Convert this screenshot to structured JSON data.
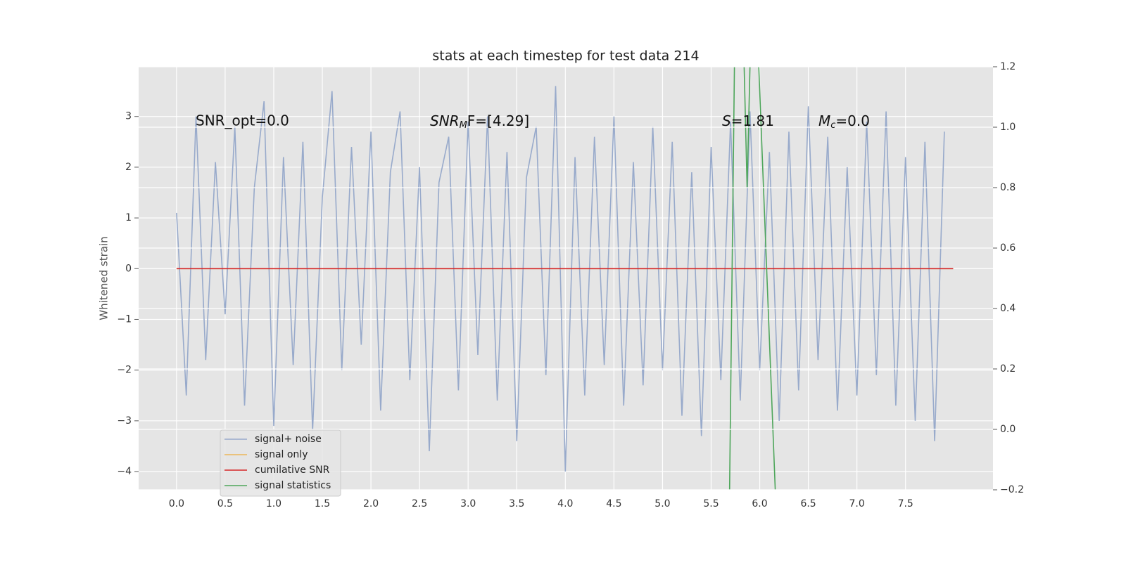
{
  "chart_data": {
    "type": "line",
    "title": "stats at each timestep for test data 214",
    "ylabel": "Whitened strain",
    "xlim": [
      -0.39,
      8.4
    ],
    "ylim": [
      -4.36,
      3.98
    ],
    "y2lim": [
      -0.2,
      1.2
    ],
    "xticks": [
      {
        "value": 0,
        "label": "0.0"
      },
      0.5,
      {
        "value": 1,
        "label": "1.0"
      },
      1.5,
      {
        "value": 2,
        "label": "2.0"
      },
      2.5,
      {
        "value": 3,
        "label": "3.0"
      },
      3.5,
      {
        "value": 4,
        "label": "4.0"
      },
      4.5,
      {
        "value": 5,
        "label": "5.0"
      },
      5.5,
      {
        "value": 6,
        "label": "6.0"
      },
      6.5,
      {
        "value": 7,
        "label": "7.0"
      },
      7.5
    ],
    "yticks": [
      {
        "value": -4,
        "label": "−4"
      },
      {
        "value": -3,
        "label": "−3"
      },
      {
        "value": -2,
        "label": "−2"
      },
      {
        "value": -1,
        "label": "−1"
      },
      0,
      1,
      2,
      3
    ],
    "y2ticks": [
      {
        "value": -0.2,
        "label": "−0.2"
      },
      {
        "value": 0,
        "label": "0.0"
      },
      0.2,
      0.4,
      0.6,
      0.8,
      {
        "value": 1,
        "label": "1.0"
      },
      1.2
    ],
    "grid": true,
    "legend": "lower left",
    "annotations": [
      "SNR_opt=0.0",
      {
        "base": "SNR",
        "sub": "M",
        "tail": "F=[4.29]"
      },
      {
        "base": "S",
        "tail": "=1.81"
      },
      {
        "base": "M",
        "sub": "c",
        "tail": "=0.0"
      }
    ],
    "series": [
      {
        "name": "signal+ noise",
        "color": "#98aacb",
        "x": [
          0,
          0.1,
          0.2,
          0.3,
          0.4,
          0.5,
          0.6,
          0.7,
          0.8,
          0.9,
          1,
          1.1,
          1.2,
          1.3,
          1.4,
          1.5,
          1.6,
          1.7,
          1.8,
          1.9,
          2,
          2.1,
          2.2,
          2.3,
          2.4,
          2.5,
          2.6,
          2.7,
          2.8,
          2.9,
          3,
          3.1,
          3.2,
          3.3,
          3.4,
          3.5,
          3.6,
          3.7,
          3.8,
          3.9,
          4,
          4.1,
          4.2,
          4.3,
          4.4,
          4.5,
          4.6,
          4.7,
          4.8,
          4.9,
          5,
          5.1,
          5.2,
          5.3,
          5.4,
          5.5,
          5.6,
          5.7,
          5.8,
          5.9,
          6,
          6.1,
          6.2,
          6.3,
          6.4,
          6.5,
          6.6,
          6.7,
          6.8,
          6.9,
          7,
          7.1,
          7.2,
          7.3,
          7.4,
          7.5,
          7.6,
          7.7,
          7.8,
          7.9
        ],
        "values": [
          1.1,
          -2.5,
          3.0,
          -1.8,
          2.1,
          -0.9,
          2.8,
          -2.7,
          1.6,
          3.3,
          -3.1,
          2.2,
          -1.9,
          2.5,
          -3.2,
          1.4,
          3.5,
          -2.0,
          2.4,
          -1.5,
          2.7,
          -2.8,
          1.9,
          3.1,
          -2.2,
          2.0,
          -3.6,
          1.7,
          2.6,
          -2.4,
          2.9,
          -1.7,
          3.0,
          -2.6,
          2.3,
          -3.4,
          1.8,
          2.8,
          -2.1,
          3.6,
          -4.0,
          2.2,
          -2.5,
          2.6,
          -1.9,
          3.0,
          -2.7,
          2.1,
          -2.3,
          2.8,
          -2.0,
          2.5,
          -2.9,
          1.9,
          -3.3,
          2.4,
          -2.2,
          2.9,
          -2.6,
          3.1,
          -2.0,
          2.3,
          -3.0,
          2.7,
          -2.4,
          3.2,
          -1.8,
          2.6,
          -2.8,
          2.0,
          -2.5,
          2.9,
          -2.1,
          3.1,
          -2.7,
          2.2,
          -3.0,
          2.5,
          -3.4,
          2.7
        ]
      },
      {
        "name": "signal only",
        "color": "#ecb75a",
        "x": [
          0,
          7.99
        ],
        "values": [
          0,
          0
        ]
      },
      {
        "name": "cumilative SNR",
        "color": "#d62728",
        "x": [
          0,
          7.99
        ],
        "values": [
          0,
          0
        ]
      },
      {
        "name": "signal statistics",
        "color": "#4ea65b",
        "axis": "y2",
        "x": [
          5.69,
          5.74,
          5.8,
          5.84,
          5.87,
          5.9,
          5.95,
          5.99,
          6.16
        ],
        "values": [
          -0.2,
          1.2,
          null,
          1.2,
          0.8,
          1.2,
          null,
          1.2,
          -0.2
        ]
      }
    ]
  }
}
